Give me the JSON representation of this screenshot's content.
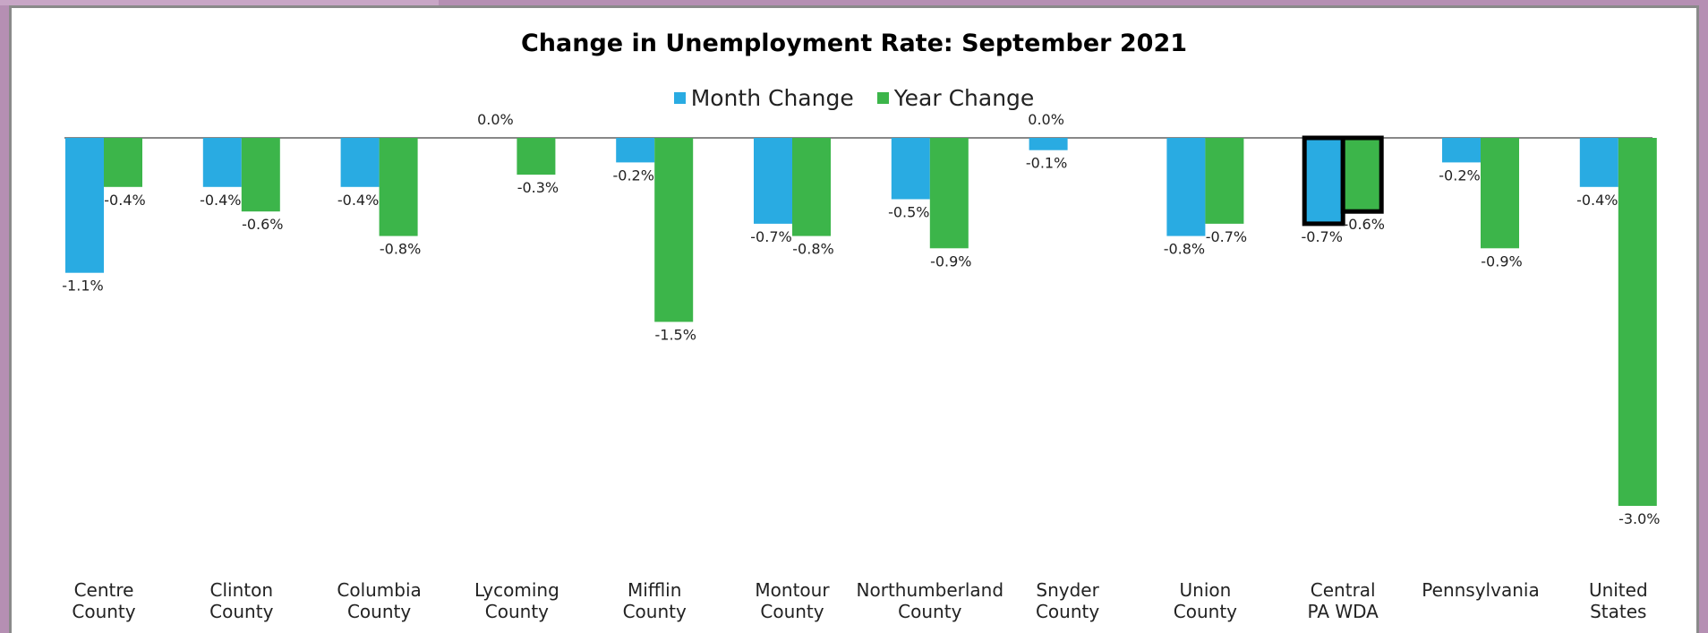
{
  "chart_data": {
    "type": "bar",
    "title": "Change in Unemployment Rate: September 2021",
    "xlabel": "",
    "ylabel": "",
    "ylim": [
      -3.0,
      0.0
    ],
    "grid": false,
    "legend_position": "top-center",
    "categories": [
      [
        "Centre",
        "County"
      ],
      [
        "Clinton",
        "County"
      ],
      [
        "Columbia",
        "County"
      ],
      [
        "Lycoming",
        "County"
      ],
      [
        "Mifflin",
        "County"
      ],
      [
        "Montour",
        "County"
      ],
      [
        "Northumberland",
        "County"
      ],
      [
        "Snyder",
        "County"
      ],
      [
        "Union",
        "County"
      ],
      [
        "Central",
        "PA WDA"
      ],
      [
        "Pennsylvania"
      ],
      [
        "United",
        "States"
      ]
    ],
    "series": [
      {
        "name": "Month Change",
        "color": "#29abe2",
        "values": [
          -1.1,
          -0.4,
          -0.4,
          0.0,
          -0.2,
          -0.7,
          -0.5,
          -0.1,
          -0.8,
          -0.7,
          -0.2,
          -0.4
        ],
        "labels": [
          "-1.1%",
          "-0.4%",
          "-0.4%",
          "0.0%",
          "-0.2%",
          "-0.7%",
          "-0.5%",
          "-0.1%",
          "-0.8%",
          "-0.7%",
          "-0.2%",
          "-0.4%"
        ]
      },
      {
        "name": "Year Change",
        "color": "#3cb54a",
        "values": [
          -0.4,
          -0.6,
          -0.8,
          -0.3,
          -1.5,
          -0.8,
          -0.9,
          0.0,
          -0.7,
          -0.6,
          -0.9,
          -3.0
        ],
        "labels": [
          "-0.4%",
          "-0.6%",
          "-0.8%",
          "-0.3%",
          "-1.5%",
          "-0.8%",
          "-0.9%",
          "0.0%",
          "-0.7%",
          "-0.6%",
          "-0.9%",
          "-3.0%"
        ]
      }
    ],
    "highlighted_category": [
      "Central",
      "PA WDA"
    ],
    "axis_color": "#888888"
  }
}
